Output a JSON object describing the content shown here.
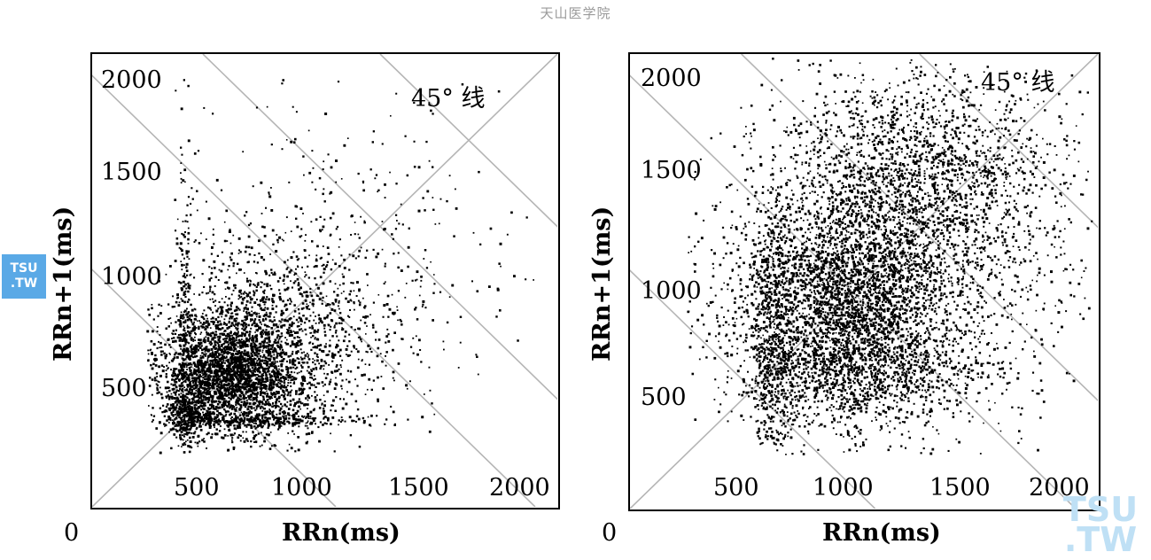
{
  "watermark": {
    "header": "天山医学院",
    "badge_line1": "TSU",
    "badge_line2": ".TW",
    "corner_line1": "TSU",
    "corner_line2": ".TW"
  },
  "chart_data": [
    {
      "type": "scatter",
      "title": "",
      "xlabel": "RRn(ms)",
      "ylabel": "RRn+1(ms)",
      "origin_label": "0",
      "annotation": "45° 线",
      "xlim": [
        0,
        2100
      ],
      "ylim": [
        0,
        2100
      ],
      "x_ticks": [
        "500",
        "1000",
        "1500",
        "2000"
      ],
      "y_ticks": [
        "500",
        "1000",
        "1500",
        "2000"
      ],
      "reference_lines": [
        "45-degree diagonal",
        "-45-degree guide lines"
      ],
      "grid": false,
      "point_color": "#000000",
      "clusters": [
        {
          "x": 620,
          "y": 620,
          "sx": 160,
          "sy": 140,
          "n": 2600
        },
        {
          "x": 820,
          "y": 760,
          "sx": 260,
          "sy": 240,
          "n": 1300
        },
        {
          "x": 1100,
          "y": 1150,
          "sx": 380,
          "sy": 330,
          "n": 380
        },
        {
          "x": 420,
          "y": 700,
          "sx": 20,
          "sy": 420,
          "n": 300
        },
        {
          "x": 800,
          "y": 400,
          "sx": 230,
          "sy": 15,
          "n": 260
        },
        {
          "x": 430,
          "y": 430,
          "sx": 50,
          "sy": 50,
          "n": 300
        }
      ]
    },
    {
      "type": "scatter",
      "title": "",
      "xlabel": "RRn(ms)",
      "ylabel": "RRn+1(ms)",
      "origin_label": "0",
      "annotation": "45° 线",
      "xlim": [
        0,
        2100
      ],
      "ylim": [
        0,
        2100
      ],
      "x_ticks": [
        "500",
        "1000",
        "1500",
        "2000"
      ],
      "y_ticks": [
        "500",
        "1000",
        "1500",
        "2000"
      ],
      "reference_lines": [
        "45-degree diagonal",
        "-45-degree guide lines"
      ],
      "grid": false,
      "point_color": "#000000",
      "clusters": [
        {
          "x": 950,
          "y": 900,
          "sx": 230,
          "sy": 260,
          "n": 2800
        },
        {
          "x": 1250,
          "y": 1250,
          "sx": 320,
          "sy": 330,
          "n": 2300
        },
        {
          "x": 640,
          "y": 800,
          "sx": 50,
          "sy": 320,
          "n": 600
        },
        {
          "x": 1150,
          "y": 620,
          "sx": 280,
          "sy": 80,
          "n": 500
        },
        {
          "x": 1350,
          "y": 1650,
          "sx": 300,
          "sy": 180,
          "n": 700
        },
        {
          "x": 1000,
          "y": 950,
          "sx": 600,
          "sy": 600,
          "n": 450
        }
      ]
    }
  ]
}
